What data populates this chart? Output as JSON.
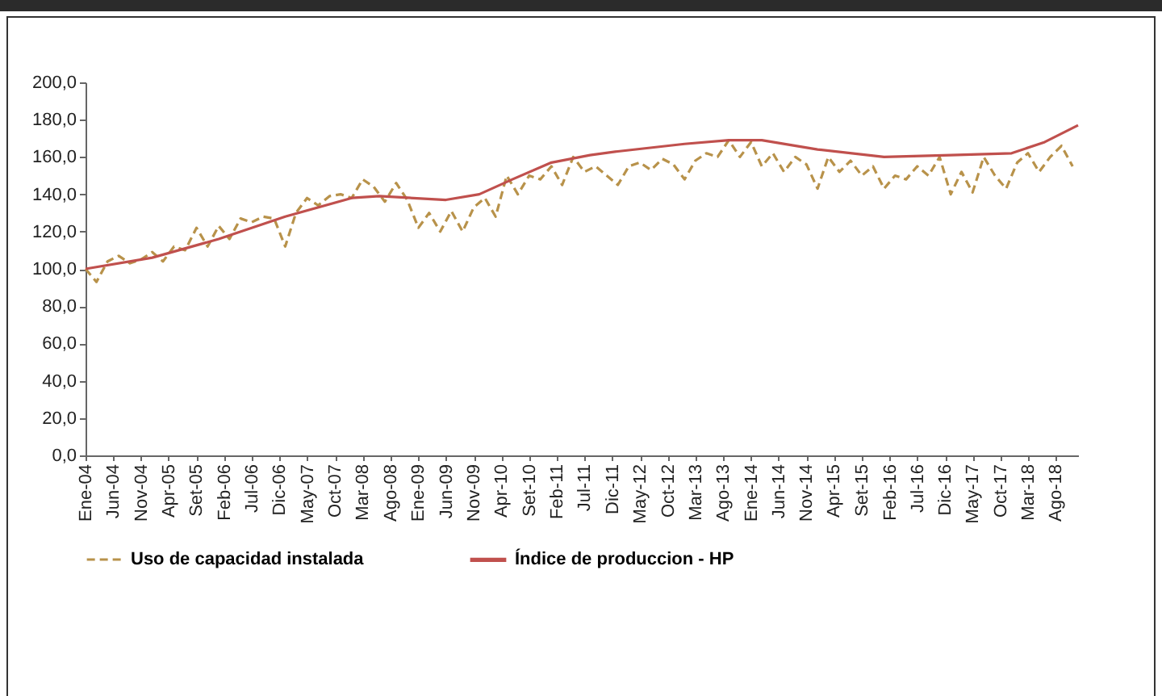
{
  "chart_data": {
    "type": "line",
    "xlim": [
      "2004-01",
      "2018-12"
    ],
    "xticks": [
      {
        "value": "2004-01",
        "label": "Ene-04"
      },
      {
        "value": "2004-06",
        "label": "Jun-04"
      },
      {
        "value": "2004-11",
        "label": "Nov-04"
      },
      {
        "value": "2005-04",
        "label": "Apr-05"
      },
      {
        "value": "2005-09",
        "label": "Set-05"
      },
      {
        "value": "2006-02",
        "label": "Feb-06"
      },
      {
        "value": "2006-07",
        "label": "Jul-06"
      },
      {
        "value": "2006-12",
        "label": "Dic-06"
      },
      {
        "value": "2007-05",
        "label": "May-07"
      },
      {
        "value": "2007-10",
        "label": "Oct-07"
      },
      {
        "value": "2008-03",
        "label": "Mar-08"
      },
      {
        "value": "2008-08",
        "label": "Ago-08"
      },
      {
        "value": "2009-01",
        "label": "Ene-09"
      },
      {
        "value": "2009-06",
        "label": "Jun-09"
      },
      {
        "value": "2009-11",
        "label": "Nov-09"
      },
      {
        "value": "2010-04",
        "label": "Apr-10"
      },
      {
        "value": "2010-09",
        "label": "Set-10"
      },
      {
        "value": "2011-02",
        "label": "Feb-11"
      },
      {
        "value": "2011-07",
        "label": "Jul-11"
      },
      {
        "value": "2011-12",
        "label": "Dic-11"
      },
      {
        "value": "2012-05",
        "label": "May-12"
      },
      {
        "value": "2012-10",
        "label": "Oct-12"
      },
      {
        "value": "2013-03",
        "label": "Mar-13"
      },
      {
        "value": "2013-08",
        "label": "Ago-13"
      },
      {
        "value": "2014-01",
        "label": "Ene-14"
      },
      {
        "value": "2014-06",
        "label": "Jun-14"
      },
      {
        "value": "2014-11",
        "label": "Nov-14"
      },
      {
        "value": "2015-04",
        "label": "Apr-15"
      },
      {
        "value": "2015-09",
        "label": "Set-15"
      },
      {
        "value": "2016-02",
        "label": "Feb-16"
      },
      {
        "value": "2016-07",
        "label": "Jul-16"
      },
      {
        "value": "2016-12",
        "label": "Dic-16"
      },
      {
        "value": "2017-05",
        "label": "May-17"
      },
      {
        "value": "2017-10",
        "label": "Oct-17"
      },
      {
        "value": "2018-03",
        "label": "Mar-18"
      },
      {
        "value": "2018-08",
        "label": "Ago-18"
      }
    ],
    "ylim": [
      0,
      200
    ],
    "yticks": [
      {
        "value": 0,
        "label": "0,0"
      },
      {
        "value": 20,
        "label": "20,0"
      },
      {
        "value": 40,
        "label": "40,0"
      },
      {
        "value": 60,
        "label": "60,0"
      },
      {
        "value": 80,
        "label": "80,0"
      },
      {
        "value": 100,
        "label": "100,0"
      },
      {
        "value": 120,
        "label": "120,0"
      },
      {
        "value": 140,
        "label": "140,0"
      },
      {
        "value": 160,
        "label": "160,0"
      },
      {
        "value": 180,
        "label": "180,0"
      },
      {
        "value": 200,
        "label": "200,0"
      }
    ],
    "grid": false,
    "legend": "bottom",
    "series": [
      {
        "name": "Uso de capacidad instalada",
        "color": "#b8924a",
        "line_style": "dashed",
        "x": [
          "2004-01",
          "2004-03",
          "2004-05",
          "2004-07",
          "2004-09",
          "2004-11",
          "2005-01",
          "2005-03",
          "2005-05",
          "2005-07",
          "2005-09",
          "2005-11",
          "2006-01",
          "2006-03",
          "2006-05",
          "2006-07",
          "2006-09",
          "2006-11",
          "2007-01",
          "2007-03",
          "2007-05",
          "2007-07",
          "2007-09",
          "2007-11",
          "2008-01",
          "2008-03",
          "2008-05",
          "2008-07",
          "2008-09",
          "2008-11",
          "2009-01",
          "2009-03",
          "2009-05",
          "2009-07",
          "2009-09",
          "2009-11",
          "2010-01",
          "2010-03",
          "2010-05",
          "2010-07",
          "2010-09",
          "2010-11",
          "2011-01",
          "2011-03",
          "2011-05",
          "2011-07",
          "2011-09",
          "2011-11",
          "2012-01",
          "2012-03",
          "2012-05",
          "2012-07",
          "2012-09",
          "2012-11",
          "2013-01",
          "2013-03",
          "2013-05",
          "2013-07",
          "2013-09",
          "2013-11",
          "2014-01",
          "2014-03",
          "2014-05",
          "2014-07",
          "2014-09",
          "2014-11",
          "2015-01",
          "2015-03",
          "2015-05",
          "2015-07",
          "2015-09",
          "2015-11",
          "2016-01",
          "2016-03",
          "2016-05",
          "2016-07",
          "2016-09",
          "2016-11",
          "2017-01",
          "2017-03",
          "2017-05",
          "2017-07",
          "2017-09",
          "2017-11",
          "2018-01",
          "2018-03",
          "2018-05",
          "2018-07",
          "2018-09",
          "2018-11"
        ],
        "values": [
          100,
          93,
          104,
          107,
          103,
          105,
          109,
          104,
          112,
          110,
          122,
          112,
          123,
          116,
          127,
          125,
          128,
          127,
          112,
          130,
          138,
          134,
          139,
          140,
          138,
          148,
          144,
          136,
          146,
          137,
          122,
          130,
          120,
          131,
          120,
          133,
          138,
          128,
          150,
          140,
          150,
          148,
          155,
          145,
          160,
          152,
          155,
          150,
          145,
          155,
          157,
          153,
          159,
          156,
          148,
          158,
          162,
          160,
          169,
          160,
          168,
          155,
          162,
          152,
          160,
          156,
          143,
          160,
          152,
          158,
          150,
          155,
          143,
          150,
          148,
          155,
          150,
          160,
          140,
          152,
          141,
          160,
          150,
          143,
          157,
          162,
          152,
          160,
          166,
          155
        ]
      },
      {
        "name": "Índice de produccion - HP",
        "color": "#c0504d",
        "line_style": "solid",
        "x": [
          "2004-01",
          "2005-01",
          "2006-01",
          "2007-01",
          "2008-01",
          "2008-06",
          "2009-06",
          "2009-12",
          "2010-06",
          "2011-01",
          "2011-08",
          "2012-01",
          "2013-01",
          "2013-09",
          "2014-03",
          "2015-01",
          "2016-01",
          "2017-01",
          "2017-12",
          "2018-06",
          "2018-12"
        ],
        "values": [
          100,
          106,
          116,
          128,
          138,
          139,
          137,
          140,
          148,
          157,
          161,
          163,
          167,
          169,
          169,
          164,
          160,
          161,
          162,
          168,
          177
        ]
      }
    ]
  }
}
